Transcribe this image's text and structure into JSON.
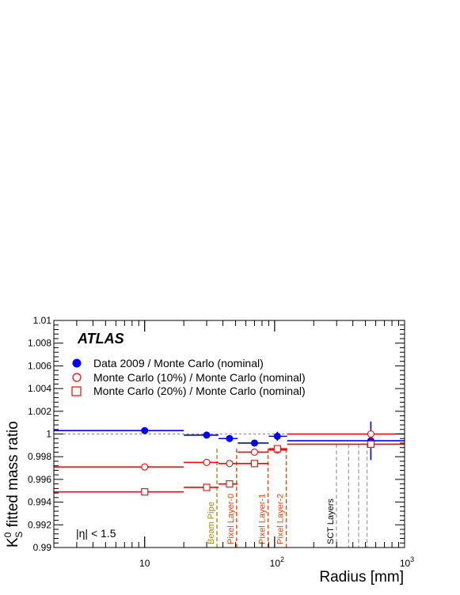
{
  "chart_data": {
    "type": "scatter",
    "experiment_label": "ATLAS",
    "cut_label": "|η| < 1.5",
    "xlabel": "Radius [mm]",
    "ylabel": "K⁰S fitted mass ratio",
    "ylabel_main": "K",
    "ylabel_sup": "0",
    "ylabel_sub": "S",
    "ylabel_rest": " fitted mass ratio",
    "x_scale": "log",
    "xlim": [
      2,
      1000
    ],
    "ylim": [
      0.99,
      1.01
    ],
    "x_ticks": [
      {
        "value": 10,
        "label": "10",
        "base": "10",
        "exp": ""
      },
      {
        "value": 100,
        "label": "10^2",
        "base": "10",
        "exp": "2"
      },
      {
        "value": 1000,
        "label": "10^3",
        "base": "10",
        "exp": "3"
      }
    ],
    "y_ticks": [
      0.99,
      0.992,
      0.994,
      0.996,
      0.998,
      1,
      1.002,
      1.004,
      1.006,
      1.008,
      1.01
    ],
    "y_tick_labels": [
      "0.99",
      "0.992",
      "0.994",
      "0.996",
      "0.998",
      "1",
      "1.002",
      "1.004",
      "1.006",
      "1.008",
      "1.01"
    ],
    "reference_line": 1.0,
    "legend_placement": "top-left",
    "series": [
      {
        "name": "Data 2009 / Monte Carlo (nominal)",
        "color": "#0000ff",
        "marker": "filled-circle",
        "points": [
          {
            "x": 10,
            "y": 1.0003,
            "xmin": 2,
            "xmax": 20,
            "err": 0.0001
          },
          {
            "x": 30,
            "y": 0.9999,
            "xmin": 20,
            "xmax": 37,
            "err": 0.0001
          },
          {
            "x": 45,
            "y": 0.9996,
            "xmin": 37,
            "xmax": 52,
            "err": 0.0001
          },
          {
            "x": 70,
            "y": 0.9992,
            "xmin": 52,
            "xmax": 90,
            "err": 0.0002
          },
          {
            "x": 105,
            "y": 0.9998,
            "xmin": 90,
            "xmax": 125,
            "err": 0.0004
          },
          {
            "x": 550,
            "y": 0.9994,
            "xmin": 125,
            "xmax": 1000,
            "err": 0.0017
          }
        ]
      },
      {
        "name": "Monte Carlo (10%) / Monte Carlo (nominal)",
        "color": "#ff0000",
        "marker": "open-circle",
        "points": [
          {
            "x": 10,
            "y": 0.9971,
            "xmin": 2,
            "xmax": 20,
            "err": 0.0001
          },
          {
            "x": 30,
            "y": 0.9975,
            "xmin": 20,
            "xmax": 37,
            "err": 0.0001
          },
          {
            "x": 45,
            "y": 0.9974,
            "xmin": 37,
            "xmax": 52,
            "err": 0.0001
          },
          {
            "x": 70,
            "y": 0.9984,
            "xmin": 52,
            "xmax": 90,
            "err": 0.0001
          },
          {
            "x": 105,
            "y": 0.9986,
            "xmin": 90,
            "xmax": 125,
            "err": 0.0002
          },
          {
            "x": 550,
            "y": 1.0,
            "xmin": 125,
            "xmax": 1000,
            "err": 0.0004
          }
        ]
      },
      {
        "name": "Monte Carlo (20%) / Monte Carlo (nominal)",
        "color": "#ff0000",
        "marker": "open-square",
        "points": [
          {
            "x": 10,
            "y": 0.9949,
            "xmin": 2,
            "xmax": 20,
            "err": 0.0001
          },
          {
            "x": 30,
            "y": 0.9953,
            "xmin": 20,
            "xmax": 37,
            "err": 0.0001
          },
          {
            "x": 45,
            "y": 0.9956,
            "xmin": 37,
            "xmax": 52,
            "err": 0.0001
          },
          {
            "x": 70,
            "y": 0.9974,
            "xmin": 52,
            "xmax": 90,
            "err": 0.0001
          },
          {
            "x": 105,
            "y": 0.9987,
            "xmin": 90,
            "xmax": 125,
            "err": 0.0002
          },
          {
            "x": 550,
            "y": 0.9991,
            "xmin": 125,
            "xmax": 1000,
            "err": 0.0004
          }
        ]
      }
    ],
    "detector_lines": [
      {
        "label": "Beam Pipe",
        "x": 36,
        "color": "#b08a00"
      },
      {
        "label": "Pixel Layer-0",
        "x": 51,
        "color": "#ff4000"
      },
      {
        "label": "Pixel Layer-1",
        "x": 89,
        "color": "#ff4000"
      },
      {
        "label": "Pixel Layer-2",
        "x": 123,
        "color": "#ff4000"
      }
    ],
    "sct_lines": {
      "label": "SCT Layers",
      "x": [
        299,
        371,
        443,
        514
      ],
      "color": "#999999"
    }
  }
}
